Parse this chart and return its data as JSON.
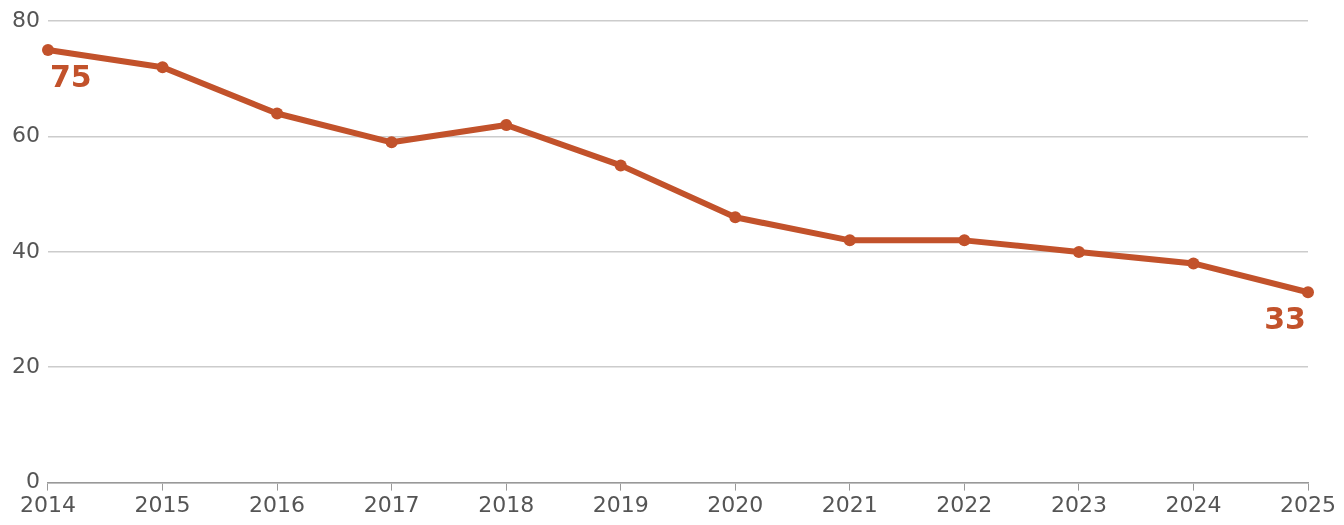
{
  "chart_data": {
    "type": "line",
    "categories": [
      "2014",
      "2015",
      "2016",
      "2017",
      "2018",
      "2019",
      "2020",
      "2021",
      "2022",
      "2023",
      "2024",
      "2025"
    ],
    "series": [
      {
        "color": "#c2522b",
        "values": [
          75,
          72,
          64,
          59,
          62,
          55,
          46,
          42,
          42,
          40,
          38,
          33
        ],
        "value_labels": [
          "75",
          null,
          null,
          null,
          null,
          null,
          null,
          null,
          null,
          null,
          null,
          "33"
        ]
      }
    ],
    "ylim": [
      0,
      80
    ],
    "yticks": [
      0,
      20,
      40,
      60,
      80
    ],
    "grid": "y",
    "legend": false,
    "marker": "circle",
    "line_style": "solid"
  }
}
